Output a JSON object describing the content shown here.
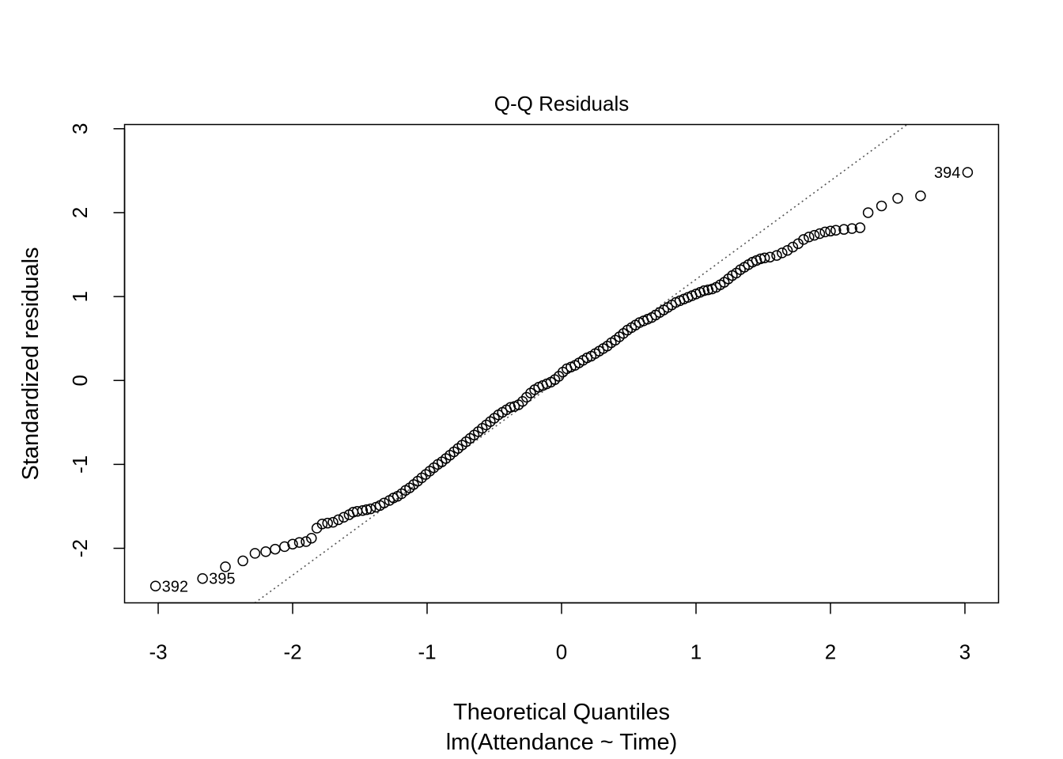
{
  "chart_data": {
    "type": "scatter",
    "title": "Q-Q Residuals",
    "xlabel": "Theoretical Quantiles",
    "xlabel_sub": "lm(Attendance ~ Time)",
    "ylabel": "Standardized residuals",
    "xlim": [
      -3.25,
      3.25
    ],
    "ylim": [
      -2.65,
      3.05
    ],
    "xticks": [
      -3,
      -2,
      -1,
      0,
      1,
      2,
      3
    ],
    "yticks": [
      -2,
      -1,
      0,
      1,
      2,
      3
    ],
    "grid": false,
    "reference_line": {
      "style": "dotted",
      "slope": 1.175,
      "intercept": 0.03
    },
    "labeled_points": [
      {
        "label": "394",
        "x": 3.02,
        "y": 2.48,
        "position": "left"
      },
      {
        "label": "392",
        "x": -3.02,
        "y": -2.45,
        "position": "right"
      },
      {
        "label": "395",
        "x": -2.67,
        "y": -2.36,
        "position": "right"
      }
    ],
    "points": [
      [
        -2.5,
        -2.22
      ],
      [
        -2.37,
        -2.15
      ],
      [
        -2.28,
        -2.06
      ],
      [
        -2.2,
        -2.04
      ],
      [
        -2.13,
        -2.01
      ],
      [
        -2.06,
        -1.98
      ],
      [
        -2.0,
        -1.95
      ],
      [
        -1.95,
        -1.93
      ],
      [
        -1.9,
        -1.92
      ],
      [
        -1.86,
        -1.88
      ],
      [
        -1.82,
        -1.76
      ],
      [
        -1.78,
        -1.71
      ],
      [
        -1.74,
        -1.7
      ],
      [
        -1.7,
        -1.69
      ],
      [
        -1.66,
        -1.66
      ],
      [
        -1.62,
        -1.63
      ],
      [
        -1.58,
        -1.6
      ],
      [
        -1.55,
        -1.57
      ],
      [
        -1.52,
        -1.56
      ],
      [
        -1.48,
        -1.55
      ],
      [
        -1.45,
        -1.54
      ],
      [
        -1.42,
        -1.53
      ],
      [
        -1.38,
        -1.51
      ],
      [
        -1.35,
        -1.49
      ],
      [
        -1.32,
        -1.46
      ],
      [
        -1.28,
        -1.43
      ],
      [
        -1.25,
        -1.4
      ],
      [
        -1.22,
        -1.38
      ],
      [
        -1.19,
        -1.35
      ],
      [
        -1.16,
        -1.31
      ],
      [
        -1.13,
        -1.28
      ],
      [
        -1.1,
        -1.24
      ],
      [
        -1.07,
        -1.2
      ],
      [
        -1.04,
        -1.16
      ],
      [
        -1.01,
        -1.12
      ],
      [
        -0.98,
        -1.08
      ],
      [
        -0.95,
        -1.04
      ],
      [
        -0.92,
        -1.0
      ],
      [
        -0.89,
        -0.97
      ],
      [
        -0.86,
        -0.93
      ],
      [
        -0.83,
        -0.89
      ],
      [
        -0.8,
        -0.85
      ],
      [
        -0.77,
        -0.81
      ],
      [
        -0.74,
        -0.77
      ],
      [
        -0.71,
        -0.73
      ],
      [
        -0.68,
        -0.69
      ],
      [
        -0.65,
        -0.65
      ],
      [
        -0.62,
        -0.61
      ],
      [
        -0.59,
        -0.57
      ],
      [
        -0.56,
        -0.53
      ],
      [
        -0.53,
        -0.49
      ],
      [
        -0.5,
        -0.45
      ],
      [
        -0.47,
        -0.41
      ],
      [
        -0.44,
        -0.38
      ],
      [
        -0.41,
        -0.35
      ],
      [
        -0.38,
        -0.32
      ],
      [
        -0.35,
        -0.31
      ],
      [
        -0.32,
        -0.29
      ],
      [
        -0.29,
        -0.25
      ],
      [
        -0.26,
        -0.2
      ],
      [
        -0.23,
        -0.15
      ],
      [
        -0.2,
        -0.11
      ],
      [
        -0.17,
        -0.08
      ],
      [
        -0.14,
        -0.06
      ],
      [
        -0.11,
        -0.04
      ],
      [
        -0.08,
        -0.02
      ],
      [
        -0.05,
        0.01
      ],
      [
        -0.02,
        0.05
      ],
      [
        0.01,
        0.1
      ],
      [
        0.04,
        0.14
      ],
      [
        0.07,
        0.16
      ],
      [
        0.1,
        0.18
      ],
      [
        0.13,
        0.21
      ],
      [
        0.16,
        0.24
      ],
      [
        0.19,
        0.27
      ],
      [
        0.22,
        0.29
      ],
      [
        0.25,
        0.32
      ],
      [
        0.28,
        0.35
      ],
      [
        0.31,
        0.38
      ],
      [
        0.34,
        0.41
      ],
      [
        0.37,
        0.45
      ],
      [
        0.4,
        0.48
      ],
      [
        0.43,
        0.52
      ],
      [
        0.46,
        0.56
      ],
      [
        0.49,
        0.6
      ],
      [
        0.52,
        0.63
      ],
      [
        0.55,
        0.66
      ],
      [
        0.58,
        0.69
      ],
      [
        0.61,
        0.71
      ],
      [
        0.64,
        0.73
      ],
      [
        0.67,
        0.75
      ],
      [
        0.7,
        0.78
      ],
      [
        0.73,
        0.81
      ],
      [
        0.76,
        0.84
      ],
      [
        0.79,
        0.87
      ],
      [
        0.82,
        0.9
      ],
      [
        0.85,
        0.93
      ],
      [
        0.88,
        0.95
      ],
      [
        0.91,
        0.97
      ],
      [
        0.94,
        0.99
      ],
      [
        0.97,
        1.01
      ],
      [
        1.0,
        1.03
      ],
      [
        1.03,
        1.05
      ],
      [
        1.06,
        1.07
      ],
      [
        1.09,
        1.08
      ],
      [
        1.12,
        1.09
      ],
      [
        1.15,
        1.11
      ],
      [
        1.18,
        1.14
      ],
      [
        1.21,
        1.17
      ],
      [
        1.24,
        1.21
      ],
      [
        1.27,
        1.25
      ],
      [
        1.3,
        1.28
      ],
      [
        1.33,
        1.32
      ],
      [
        1.36,
        1.35
      ],
      [
        1.39,
        1.38
      ],
      [
        1.42,
        1.41
      ],
      [
        1.45,
        1.43
      ],
      [
        1.48,
        1.45
      ],
      [
        1.51,
        1.46
      ],
      [
        1.55,
        1.47
      ],
      [
        1.6,
        1.49
      ],
      [
        1.64,
        1.52
      ],
      [
        1.68,
        1.55
      ],
      [
        1.72,
        1.59
      ],
      [
        1.76,
        1.63
      ],
      [
        1.8,
        1.68
      ],
      [
        1.84,
        1.71
      ],
      [
        1.88,
        1.73
      ],
      [
        1.92,
        1.75
      ],
      [
        1.96,
        1.77
      ],
      [
        2.0,
        1.78
      ],
      [
        2.04,
        1.79
      ],
      [
        2.1,
        1.8
      ],
      [
        2.16,
        1.81
      ],
      [
        2.22,
        1.82
      ],
      [
        2.28,
        2.0
      ],
      [
        2.38,
        2.08
      ],
      [
        2.5,
        2.17
      ],
      [
        2.67,
        2.2
      ]
    ]
  }
}
